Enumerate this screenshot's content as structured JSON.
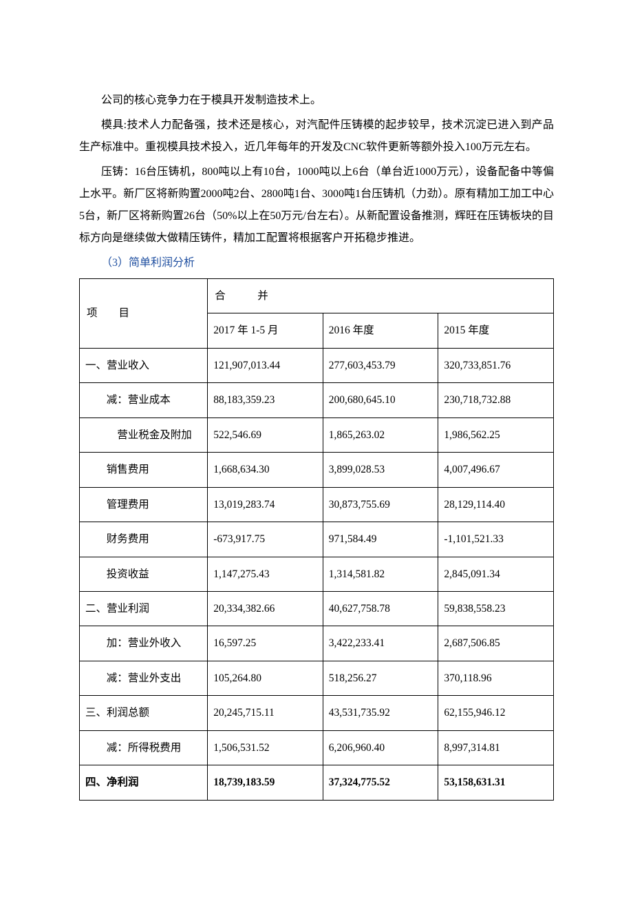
{
  "paragraphs": {
    "p1": "公司的核心竞争力在于模具开发制造技术上。",
    "p2": "模具:技术人力配备强，技术还是核心，对汽配件压铸模的起步较早，技术沉淀已进入到产品生产标准中。重视模具技术投入，近几年每年的开发及CNC软件更新等额外投入100万元左右。",
    "p3": "压铸：16台压铸机，800吨以上有10台，1000吨以上6台（单台近1000万元），设备配备中等偏上水平。新厂区将新购置2000吨2台、2800吨1台、3000吨1台压铸机（力劲）。原有精加工加工中心5台，新厂区将新购置26台（50%以上在50万元/台左右）。从新配置设备推测，辉旺在压铸板块的目标方向是继续做大做精压铸件，精加工配置将根据客户开拓稳步推进。",
    "p4": "（3）简单利润分析"
  },
  "table": {
    "header": {
      "item_label": "项　目",
      "merge_label": "合　并",
      "period1": "2017 年 1-5 月",
      "period2": "2016 年度",
      "period3": "2015 年度"
    },
    "rows": [
      {
        "label": "一、营业收入",
        "indent": 0,
        "v1": "121,907,013.44",
        "v2": "277,603,453.79",
        "v3": "320,733,851.76"
      },
      {
        "label": "减：营业成本",
        "indent": 1,
        "v1": "88,183,359.23",
        "v2": "200,680,645.10",
        "v3": "230,718,732.88"
      },
      {
        "label": "营业税金及附加",
        "indent": 2,
        "v1": "522,546.69",
        "v2": "1,865,263.02",
        "v3": "1,986,562.25"
      },
      {
        "label": "销售费用",
        "indent": 1,
        "v1": "1,668,634.30",
        "v2": "3,899,028.53",
        "v3": "4,007,496.67"
      },
      {
        "label": "管理费用",
        "indent": 1,
        "v1": "13,019,283.74",
        "v2": "30,873,755.69",
        "v3": "28,129,114.40"
      },
      {
        "label": "财务费用",
        "indent": 1,
        "v1": "-673,917.75",
        "v2": "971,584.49",
        "v3": "-1,101,521.33"
      },
      {
        "label": "投资收益",
        "indent": 1,
        "v1": "1,147,275.43",
        "v2": "1,314,581.82",
        "v3": "2,845,091.34"
      },
      {
        "label": "二、营业利润",
        "indent": 0,
        "v1": "20,334,382.66",
        "v2": "40,627,758.78",
        "v3": "59,838,558.23"
      },
      {
        "label": "加：营业外收入",
        "indent": 1,
        "v1": "16,597.25",
        "v2": "3,422,233.41",
        "v3": "2,687,506.85"
      },
      {
        "label": "减：营业外支出",
        "indent": 1,
        "v1": "105,264.80",
        "v2": "518,256.27",
        "v3": "370,118.96"
      },
      {
        "label": "三、利润总额",
        "indent": 0,
        "v1": "20,245,715.11",
        "v2": "43,531,735.92",
        "v3": "62,155,946.12"
      },
      {
        "label": "减：所得税费用",
        "indent": 1,
        "v1": "1,506,531.52",
        "v2": "6,206,960.40",
        "v3": "8,997,314.81"
      },
      {
        "label": "四、净利润",
        "indent": 0,
        "bold": true,
        "v1": "18,739,183.59",
        "v2": "37,324,775.52",
        "v3": "53,158,631.31"
      }
    ]
  }
}
